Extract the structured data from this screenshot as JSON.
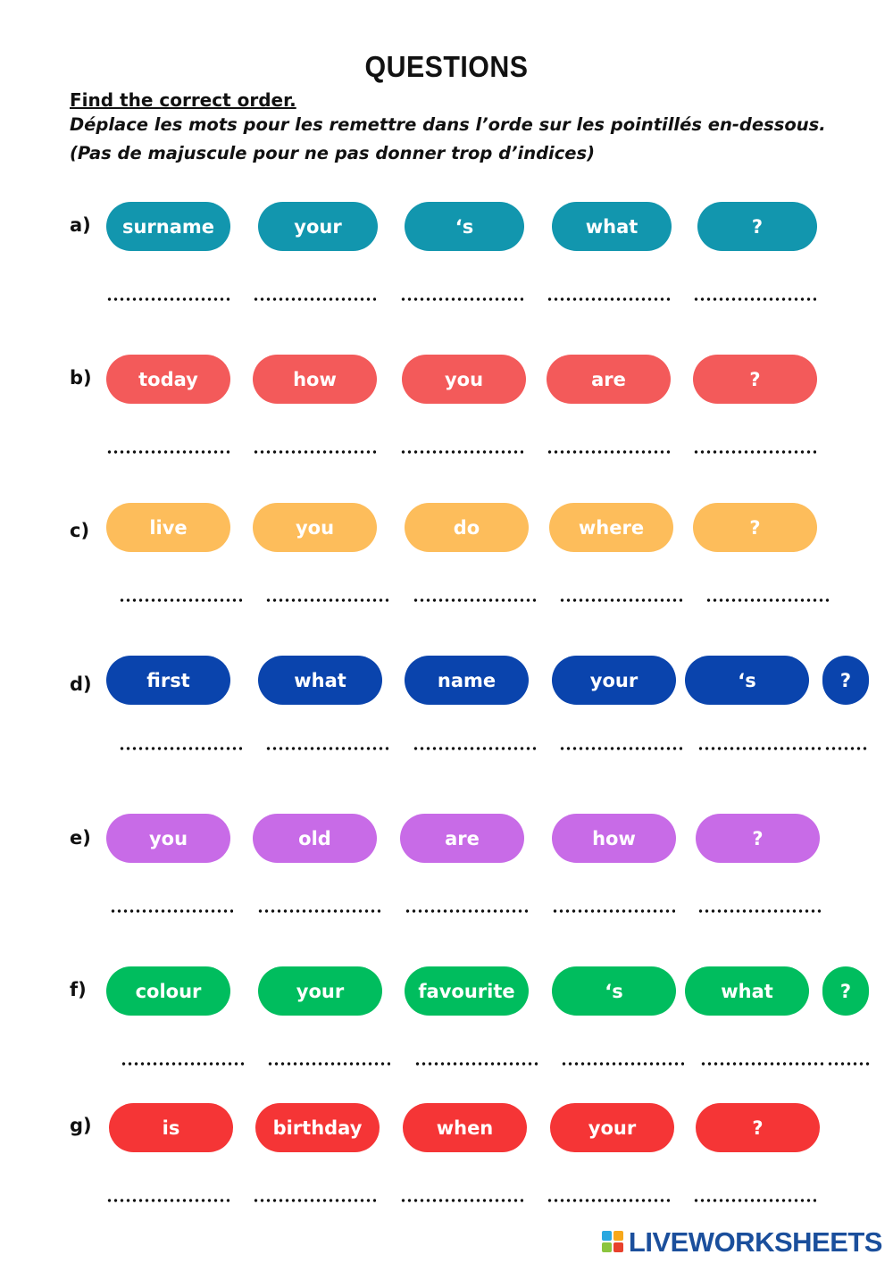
{
  "title": "QUESTIONS",
  "instructions": {
    "line1": "Find the correct order.",
    "line2": "Déplace les mots pour les remettre dans l’orde sur les pointillés en-dessous.",
    "line3": "(Pas de majuscule pour ne pas donner trop d’indices)"
  },
  "exercises": [
    {
      "label": "a)",
      "color": "#1296ae",
      "words": [
        "surname",
        "your",
        "‘s",
        "what",
        "?"
      ]
    },
    {
      "label": "b)",
      "color": "#f35a5a",
      "words": [
        "today",
        "how",
        "you",
        "are",
        "?"
      ]
    },
    {
      "label": "c)",
      "color": "#fdbd5b",
      "words": [
        "live",
        "you",
        "do",
        "where",
        "?"
      ]
    },
    {
      "label": "d)",
      "color": "#0a44ad",
      "words": [
        "first",
        "what",
        "name",
        "your",
        "‘s",
        "?"
      ]
    },
    {
      "label": "e)",
      "color": "#c86be7",
      "words": [
        "you",
        "old",
        "are",
        "how",
        "?"
      ]
    },
    {
      "label": "f)",
      "color": "#00bd5e",
      "words": [
        "colour",
        "your",
        "favourite",
        "‘s",
        "what",
        "?"
      ]
    },
    {
      "label": "g)",
      "color": "#f53536",
      "words": [
        "is",
        "birthday",
        "when",
        "your",
        "?"
      ]
    }
  ],
  "brand": {
    "name": "LIVEWORKSHEETS",
    "color": "#1b4f9c"
  }
}
